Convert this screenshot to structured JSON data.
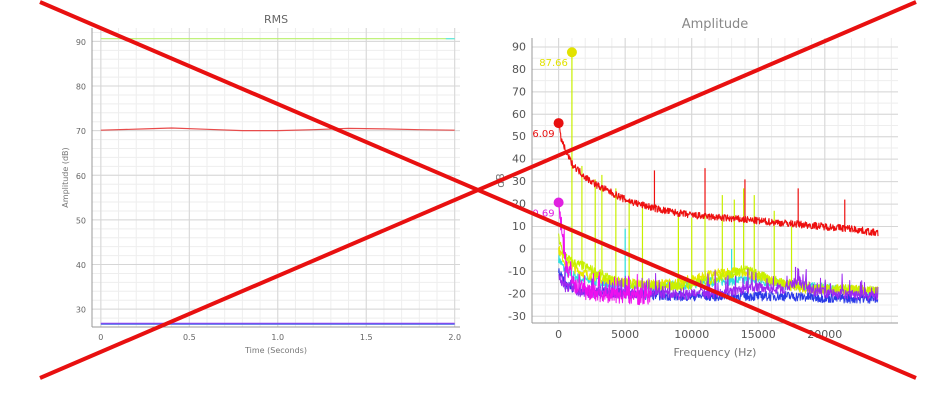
{
  "chart_data": [
    {
      "type": "line",
      "title": "RMS",
      "xlabel": "Time (Seconds)",
      "ylabel": "Amplitude (dB)",
      "xlim": [
        -0.05,
        2.03
      ],
      "ylim": [
        26,
        93
      ],
      "xticks": [
        0,
        0.5,
        1.0,
        1.5,
        2.0
      ],
      "xtick_labels": [
        "0",
        "0.5",
        "1.0",
        "1.5",
        "2.0"
      ],
      "yticks": [
        30,
        40,
        50,
        60,
        70,
        80,
        90
      ],
      "grid": true,
      "series": [
        {
          "color": "#b8f06a",
          "x": [
            0,
            2.0
          ],
          "y": [
            90.6,
            90.6
          ]
        },
        {
          "color": "#5ee6e6",
          "x": [
            1.95,
            2.0
          ],
          "y": [
            90.6,
            90.6
          ]
        },
        {
          "color": "#e84b4b",
          "x": [
            0,
            0.25,
            0.4,
            0.6,
            0.8,
            1.0,
            1.2,
            1.4,
            1.6,
            1.8,
            2.0
          ],
          "y": [
            70.1,
            70.4,
            70.6,
            70.3,
            70.0,
            70.0,
            70.2,
            70.5,
            70.4,
            70.2,
            70.1
          ]
        },
        {
          "color": "#8a3cf0",
          "x": [
            0,
            2.0
          ],
          "y": [
            26.8,
            26.8
          ]
        },
        {
          "color": "#5a7ae8",
          "x": [
            0,
            2.0
          ],
          "y": [
            26.6,
            26.6
          ]
        }
      ]
    },
    {
      "type": "line",
      "title": "Amplitude",
      "xlabel": "Frequency (Hz)",
      "ylabel": "dB",
      "xlim": [
        -2000,
        25500
      ],
      "ylim": [
        -33,
        94
      ],
      "xticks": [
        0,
        5000,
        10000,
        15000,
        20000
      ],
      "yticks": [
        -30,
        -20,
        -10,
        0,
        10,
        20,
        30,
        40,
        50,
        60,
        70,
        80,
        90
      ],
      "grid": true,
      "annotations": [
        {
          "text": "6.09",
          "x": 0,
          "y": 56.09,
          "color": "#e81010"
        },
        {
          "text": "87.66",
          "x": 1000,
          "y": 87.66,
          "color": "#e2e200"
        },
        {
          "text": "0.69",
          "x": 0,
          "y": 20.69,
          "color": "#e020e0"
        }
      ],
      "series": [
        {
          "name": "red",
          "color": "#ee1010",
          "x": [
            0,
            150,
            500,
            1000,
            2000,
            3000,
            4000,
            5000,
            6000,
            7000,
            8000,
            9000,
            10000,
            11000,
            12000,
            13000,
            14000,
            15000,
            16000,
            17000,
            18000,
            19000,
            20000,
            21000,
            22000,
            23000,
            24000
          ],
          "y": [
            56,
            50,
            44,
            38,
            32,
            28,
            25,
            22,
            20,
            18.5,
            17,
            16,
            15,
            14.5,
            14,
            13.5,
            13,
            12.5,
            12,
            11.5,
            11,
            10.5,
            10,
            9.5,
            9,
            8,
            7
          ],
          "peaks": [
            [
              7200,
              35
            ],
            [
              11000,
              36
            ],
            [
              14000,
              31
            ],
            [
              18000,
              27
            ],
            [
              21500,
              22
            ]
          ]
        },
        {
          "name": "yellow-green",
          "color": "#c8f000",
          "x": [
            0,
            300,
            1000,
            2000,
            4000,
            6000,
            8000,
            10000,
            12000,
            14000,
            16000,
            18000,
            20000,
            22000,
            24000
          ],
          "y": [
            5,
            -2,
            -6,
            -8,
            -14,
            -16,
            -17,
            -16,
            -13,
            -9,
            -14,
            -16,
            -18,
            -18,
            -19
          ],
          "peaks": [
            [
              1000,
              87.66
            ],
            [
              1750,
              37
            ],
            [
              2750,
              31
            ],
            [
              3250,
              33
            ],
            [
              4300,
              27
            ],
            [
              5300,
              22
            ],
            [
              6300,
              19
            ],
            [
              9000,
              16
            ],
            [
              10000,
              14
            ],
            [
              11000,
              16
            ],
            [
              12300,
              24
            ],
            [
              13200,
              22
            ],
            [
              13900,
              27
            ],
            [
              14700,
              24
            ],
            [
              16200,
              17
            ],
            [
              17500,
              10
            ]
          ]
        },
        {
          "name": "cyan",
          "color": "#2ee0e0",
          "x": [
            0,
            500,
            1500,
            3000,
            5000,
            7000,
            9000,
            11000,
            13000,
            15000,
            17000,
            19000,
            21000,
            24000
          ],
          "y": [
            -4,
            -10,
            -13,
            -15,
            -16,
            -17,
            -16,
            -15,
            -14,
            -14,
            -16,
            -17,
            -18,
            -19
          ],
          "peaks": [
            [
              5000,
              9
            ],
            [
              13000,
              0
            ]
          ]
        },
        {
          "name": "yellow",
          "color": "#e8e800",
          "x": [
            0,
            500,
            1500,
            3000,
            5000,
            7000,
            9000,
            11000,
            13000,
            15000,
            17000,
            19000,
            21000,
            24000
          ],
          "y": [
            0,
            -6,
            -10,
            -13,
            -15,
            -16,
            -15,
            -12,
            -10,
            -12,
            -16,
            -18,
            -18,
            -19
          ],
          "peaks": []
        },
        {
          "name": "blue",
          "color": "#2a3ae8",
          "x": [
            0,
            500,
            1500,
            3000,
            5000,
            7000,
            9000,
            11000,
            13000,
            15000,
            17000,
            19000,
            21000,
            24000
          ],
          "y": [
            -10,
            -16,
            -18,
            -19,
            -20,
            -20.5,
            -21,
            -21,
            -21,
            -21,
            -21,
            -21.5,
            -22,
            -22
          ],
          "peaks": []
        },
        {
          "name": "purple",
          "color": "#9d28f0",
          "x": [
            0,
            500,
            1500,
            3000,
            5000,
            7000,
            9000,
            11000,
            13000,
            15000,
            17000,
            18000,
            19000,
            21000,
            24000
          ],
          "y": [
            -12,
            -17,
            -19,
            -20,
            -20,
            -20,
            -20.5,
            -20,
            -19,
            -17,
            -18,
            -14,
            -19,
            -20,
            -21
          ],
          "peaks": [
            [
              17800,
              -8
            ]
          ]
        },
        {
          "name": "magenta",
          "color": "#ee10ee",
          "x": [
            0,
            200,
            600,
            1200,
            2000,
            3000,
            4000,
            5000,
            6000,
            7000
          ],
          "y": [
            20.69,
            8,
            -8,
            -16,
            -19,
            -20,
            -20,
            -20.5,
            -21,
            -21
          ],
          "peaks": []
        }
      ]
    }
  ]
}
